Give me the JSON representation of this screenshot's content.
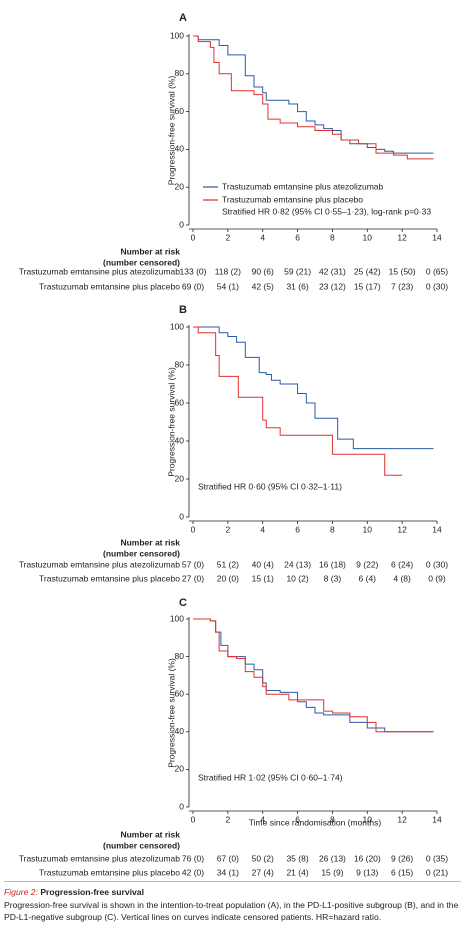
{
  "chart_data": [
    {
      "type": "line",
      "step": true,
      "panel": "A",
      "ylabel": "Progression-free survival (%)",
      "xlim": [
        0,
        14
      ],
      "ylim": [
        0,
        100
      ],
      "xticks": [
        0,
        2,
        4,
        6,
        8,
        10,
        12,
        14
      ],
      "yticks": [
        0,
        20,
        40,
        60,
        80,
        100
      ],
      "series": [
        {
          "name": "Trastuzumab emtansine plus atezolizumab",
          "color": "#2a5aa8",
          "x": [
            0,
            0.3,
            1.2,
            1.5,
            2.0,
            3.0,
            3.5,
            4.0,
            4.2,
            5.0,
            5.5,
            6.0,
            6.5,
            7.0,
            7.5,
            8.0,
            8.5,
            9.0,
            10.0,
            10.5,
            11.0,
            11.5,
            13.8
          ],
          "values": [
            100,
            98,
            98,
            95,
            90,
            79,
            73,
            70,
            66,
            66,
            64,
            60,
            55,
            53,
            51,
            50,
            45,
            43,
            41,
            40,
            39,
            38,
            38
          ]
        },
        {
          "name": "Trastuzumab emtansine plus placebo",
          "color": "#e0312b",
          "x": [
            0,
            0.3,
            1.0,
            1.2,
            1.5,
            2.2,
            3.5,
            4.0,
            4.3,
            5.0,
            6.0,
            7.0,
            8.0,
            8.5,
            9.5,
            10.5,
            11.5,
            12.3,
            13.8
          ],
          "values": [
            100,
            97,
            94,
            86,
            80,
            71,
            69,
            64,
            56,
            54,
            52,
            50,
            48,
            45,
            43,
            38,
            37,
            35,
            35
          ]
        }
      ],
      "annotation": "Stratified HR 0·82 (95% CI 0·55–1·23), log-rank p=0·33",
      "risk_header": [
        "Number at risk",
        "(number censored)"
      ],
      "risk_table": [
        {
          "label": "Trastuzumab emtansine plus atezolizumab",
          "values": [
            "133 (0)",
            "118 (2)",
            "90 (6)",
            "59 (21)",
            "42 (31)",
            "25 (42)",
            "15 (50)",
            "0 (65)"
          ]
        },
        {
          "label": "Trastuzumab emtansine plus placebo",
          "values": [
            "69 (0)",
            "54 (1)",
            "42 (5)",
            "31 (6)",
            "23 (12)",
            "15 (17)",
            "7 (23)",
            "0 (30)"
          ]
        }
      ]
    },
    {
      "type": "line",
      "step": true,
      "panel": "B",
      "ylabel": "Progression-free survival (%)",
      "xlim": [
        0,
        14
      ],
      "ylim": [
        0,
        100
      ],
      "xticks": [
        0,
        2,
        4,
        6,
        8,
        10,
        12,
        14
      ],
      "yticks": [
        0,
        20,
        40,
        60,
        80,
        100
      ],
      "series": [
        {
          "color": "#2a5aa8",
          "x": [
            0,
            1.5,
            2.0,
            2.5,
            3.0,
            3.8,
            4.2,
            4.5,
            5.0,
            6.0,
            6.5,
            7.0,
            8.2,
            8.3,
            9.2,
            11.5,
            13.8
          ],
          "values": [
            100,
            97,
            95,
            92,
            84,
            76,
            75,
            72,
            70,
            65,
            60,
            52,
            52,
            41,
            36,
            36,
            36
          ]
        },
        {
          "color": "#e0312b",
          "x": [
            0,
            0.3,
            1.3,
            1.5,
            2.6,
            4.0,
            4.2,
            5.0,
            8.0,
            11.0,
            12.0
          ],
          "values": [
            100,
            97,
            85,
            74,
            63,
            51,
            47,
            43,
            33,
            22,
            22
          ]
        }
      ],
      "annotation": "Stratified HR 0·60 (95% CI 0·32–1·11)",
      "risk_header": [
        "Number at risk",
        "(number censored)"
      ],
      "risk_table": [
        {
          "label": "Trastuzumab emtansine plus atezolizumab",
          "values": [
            "57 (0)",
            "51 (2)",
            "40 (4)",
            "24 (13)",
            "16 (18)",
            "9 (22)",
            "6 (24)",
            "0 (30)"
          ]
        },
        {
          "label": "Trastuzumab emtansine plus placebo",
          "values": [
            "27 (0)",
            "20 (0)",
            "15 (1)",
            "10 (2)",
            "8 (3)",
            "6 (4)",
            "4 (8)",
            "0 (9)"
          ]
        }
      ]
    },
    {
      "type": "line",
      "step": true,
      "panel": "C",
      "ylabel": "Progression-free survival (%)",
      "xlabel": "Time since randomisation (months)",
      "xlim": [
        0,
        14
      ],
      "ylim": [
        0,
        100
      ],
      "xticks": [
        0,
        2,
        4,
        6,
        8,
        10,
        12,
        14
      ],
      "yticks": [
        0,
        20,
        40,
        60,
        80,
        100
      ],
      "series": [
        {
          "color": "#2a5aa8",
          "x": [
            0,
            1.0,
            1.3,
            1.6,
            2.0,
            3.0,
            3.5,
            4.0,
            4.2,
            5.0,
            6.0,
            6.5,
            7.0,
            7.5,
            8.0,
            9.0,
            10.0,
            11.0,
            13.8
          ],
          "values": [
            100,
            99,
            93,
            86,
            80,
            76,
            73,
            66,
            62,
            61,
            56,
            53,
            50,
            49,
            49,
            45,
            42,
            40,
            40
          ]
        },
        {
          "color": "#e0312b",
          "x": [
            0,
            1.0,
            1.3,
            1.5,
            2.0,
            2.5,
            3.0,
            3.5,
            4.0,
            4.2,
            5.5,
            6.5,
            7.5,
            8.0,
            9.0,
            10.0,
            10.5,
            11.0,
            13.8
          ],
          "values": [
            100,
            99,
            93,
            83,
            80,
            79,
            72,
            69,
            64,
            60,
            57,
            57,
            51,
            50,
            48,
            45,
            40,
            40,
            40
          ]
        }
      ],
      "annotation": "Stratified HR 1·02 (95% CI 0·60–1·74)",
      "risk_header": [
        "Number at risk",
        "(number censored)"
      ],
      "risk_table": [
        {
          "label": "Trastuzumab emtansine plus atezolizumab",
          "values": [
            "76 (0)",
            "67 (0)",
            "50 (2)",
            "35 (8)",
            "26 (13)",
            "16 (20)",
            "9 (26)",
            "0 (35)"
          ]
        },
        {
          "label": "Trastuzumab emtansine plus placebo",
          "values": [
            "42 (0)",
            "34 (1)",
            "27 (4)",
            "21 (4)",
            "15 (9)",
            "9 (13)",
            "6 (15)",
            "0 (21)"
          ]
        }
      ]
    }
  ],
  "caption": {
    "label": "Figure 2:",
    "title": "Progression-free survival",
    "text": "Progression-free survival is shown in the intention-to-treat population (A), in the PD-L1-positive subgroup (B), and in the PD-L1-negative subgroup (C). Vertical lines on curves indicate censored patients. HR=hazard ratio."
  }
}
